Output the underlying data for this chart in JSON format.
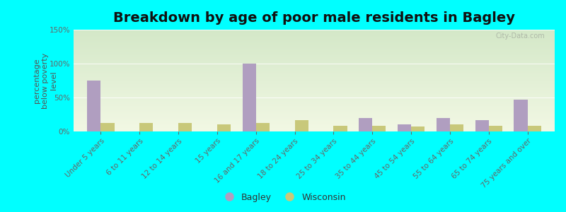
{
  "title": "Breakdown by age of poor male residents in Bagley",
  "ylabel": "percentage\nbelow poverty\nlevel",
  "categories": [
    "Under 5 years",
    "6 to 11 years",
    "12 to 14 years",
    "15 years",
    "16 and 17 years",
    "18 to 24 years",
    "25 to 34 years",
    "35 to 44 years",
    "45 to 54 years",
    "55 to 64 years",
    "65 to 74 years",
    "75 years and over"
  ],
  "bagley_values": [
    75,
    0,
    0,
    0,
    100,
    0,
    0,
    20,
    10,
    20,
    17,
    47
  ],
  "wisconsin_values": [
    13,
    13,
    12,
    10,
    13,
    17,
    8,
    8,
    7,
    10,
    8,
    8
  ],
  "bagley_color": "#b09ec0",
  "wisconsin_color": "#c8c87a",
  "background_color": "#00ffff",
  "grad_top": "#d4e8c8",
  "grad_bottom": "#f2f8e4",
  "ylim": [
    0,
    150
  ],
  "yticks": [
    0,
    50,
    100,
    150
  ],
  "ytick_labels": [
    "0%",
    "50%",
    "100%",
    "150%"
  ],
  "bar_width": 0.35,
  "legend_labels": [
    "Bagley",
    "Wisconsin"
  ],
  "title_fontsize": 14,
  "axis_label_fontsize": 8,
  "tick_fontsize": 7.5,
  "watermark": "City-Data.com"
}
